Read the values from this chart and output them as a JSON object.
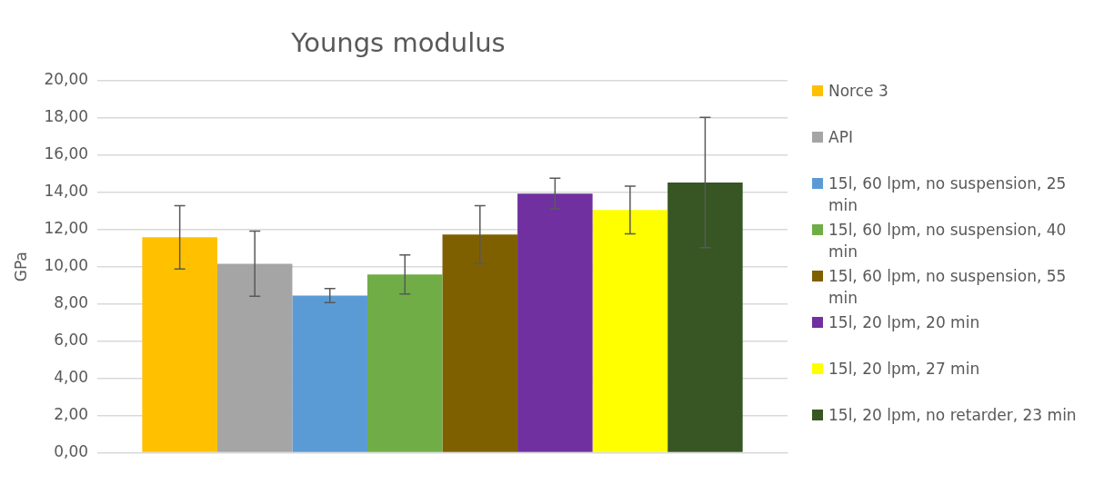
{
  "chart_data": {
    "type": "bar",
    "title": "Youngs modulus",
    "ylabel": "GPa",
    "categories": [
      null
    ],
    "series": [
      {
        "name": "Norce 3",
        "color": "#ffc000",
        "values": [
          11.58
        ],
        "errors": [
          1.7
        ]
      },
      {
        "name": "API",
        "color": "#a5a5a5",
        "values": [
          10.16
        ],
        "errors": [
          1.75
        ]
      },
      {
        "name": "15l, 60 lpm, no suspension, 25 min",
        "color": "#5b9bd5",
        "values": [
          8.45
        ],
        "errors": [
          0.38
        ]
      },
      {
        "name": "15l, 60 lpm, no suspension, 40 min",
        "color": "#70ad47",
        "values": [
          9.58
        ],
        "errors": [
          1.05
        ]
      },
      {
        "name": "15l, 60 lpm, no suspension, 55 min",
        "color": "#7f6000",
        "values": [
          11.73
        ],
        "errors": [
          1.55
        ]
      },
      {
        "name": "15l, 20 lpm, 20 min",
        "color": "#7030a0",
        "values": [
          13.93
        ],
        "errors": [
          0.82
        ]
      },
      {
        "name": "15l, 20 lpm, 27 min",
        "color": "#ffff00",
        "values": [
          13.05
        ],
        "errors": [
          1.28
        ]
      },
      {
        "name": "15l, 20 lpm, no retarder, 23 min",
        "color": "#375623",
        "values": [
          14.52
        ],
        "errors": [
          3.5
        ]
      }
    ],
    "ylim": [
      0,
      20
    ],
    "yticks": [
      {
        "value": 0,
        "label": "0,00"
      },
      {
        "value": 2,
        "label": "2,00"
      },
      {
        "value": 4,
        "label": "4,00"
      },
      {
        "value": 6,
        "label": "6,00"
      },
      {
        "value": 8,
        "label": "8,00"
      },
      {
        "value": 10,
        "label": "10,00"
      },
      {
        "value": 12,
        "label": "12,00"
      },
      {
        "value": 14,
        "label": "14,00"
      },
      {
        "value": 16,
        "label": "16,00"
      },
      {
        "value": 18,
        "label": "18,00"
      },
      {
        "value": 20,
        "label": "20,00"
      }
    ],
    "grid": "y",
    "legend": "right"
  }
}
